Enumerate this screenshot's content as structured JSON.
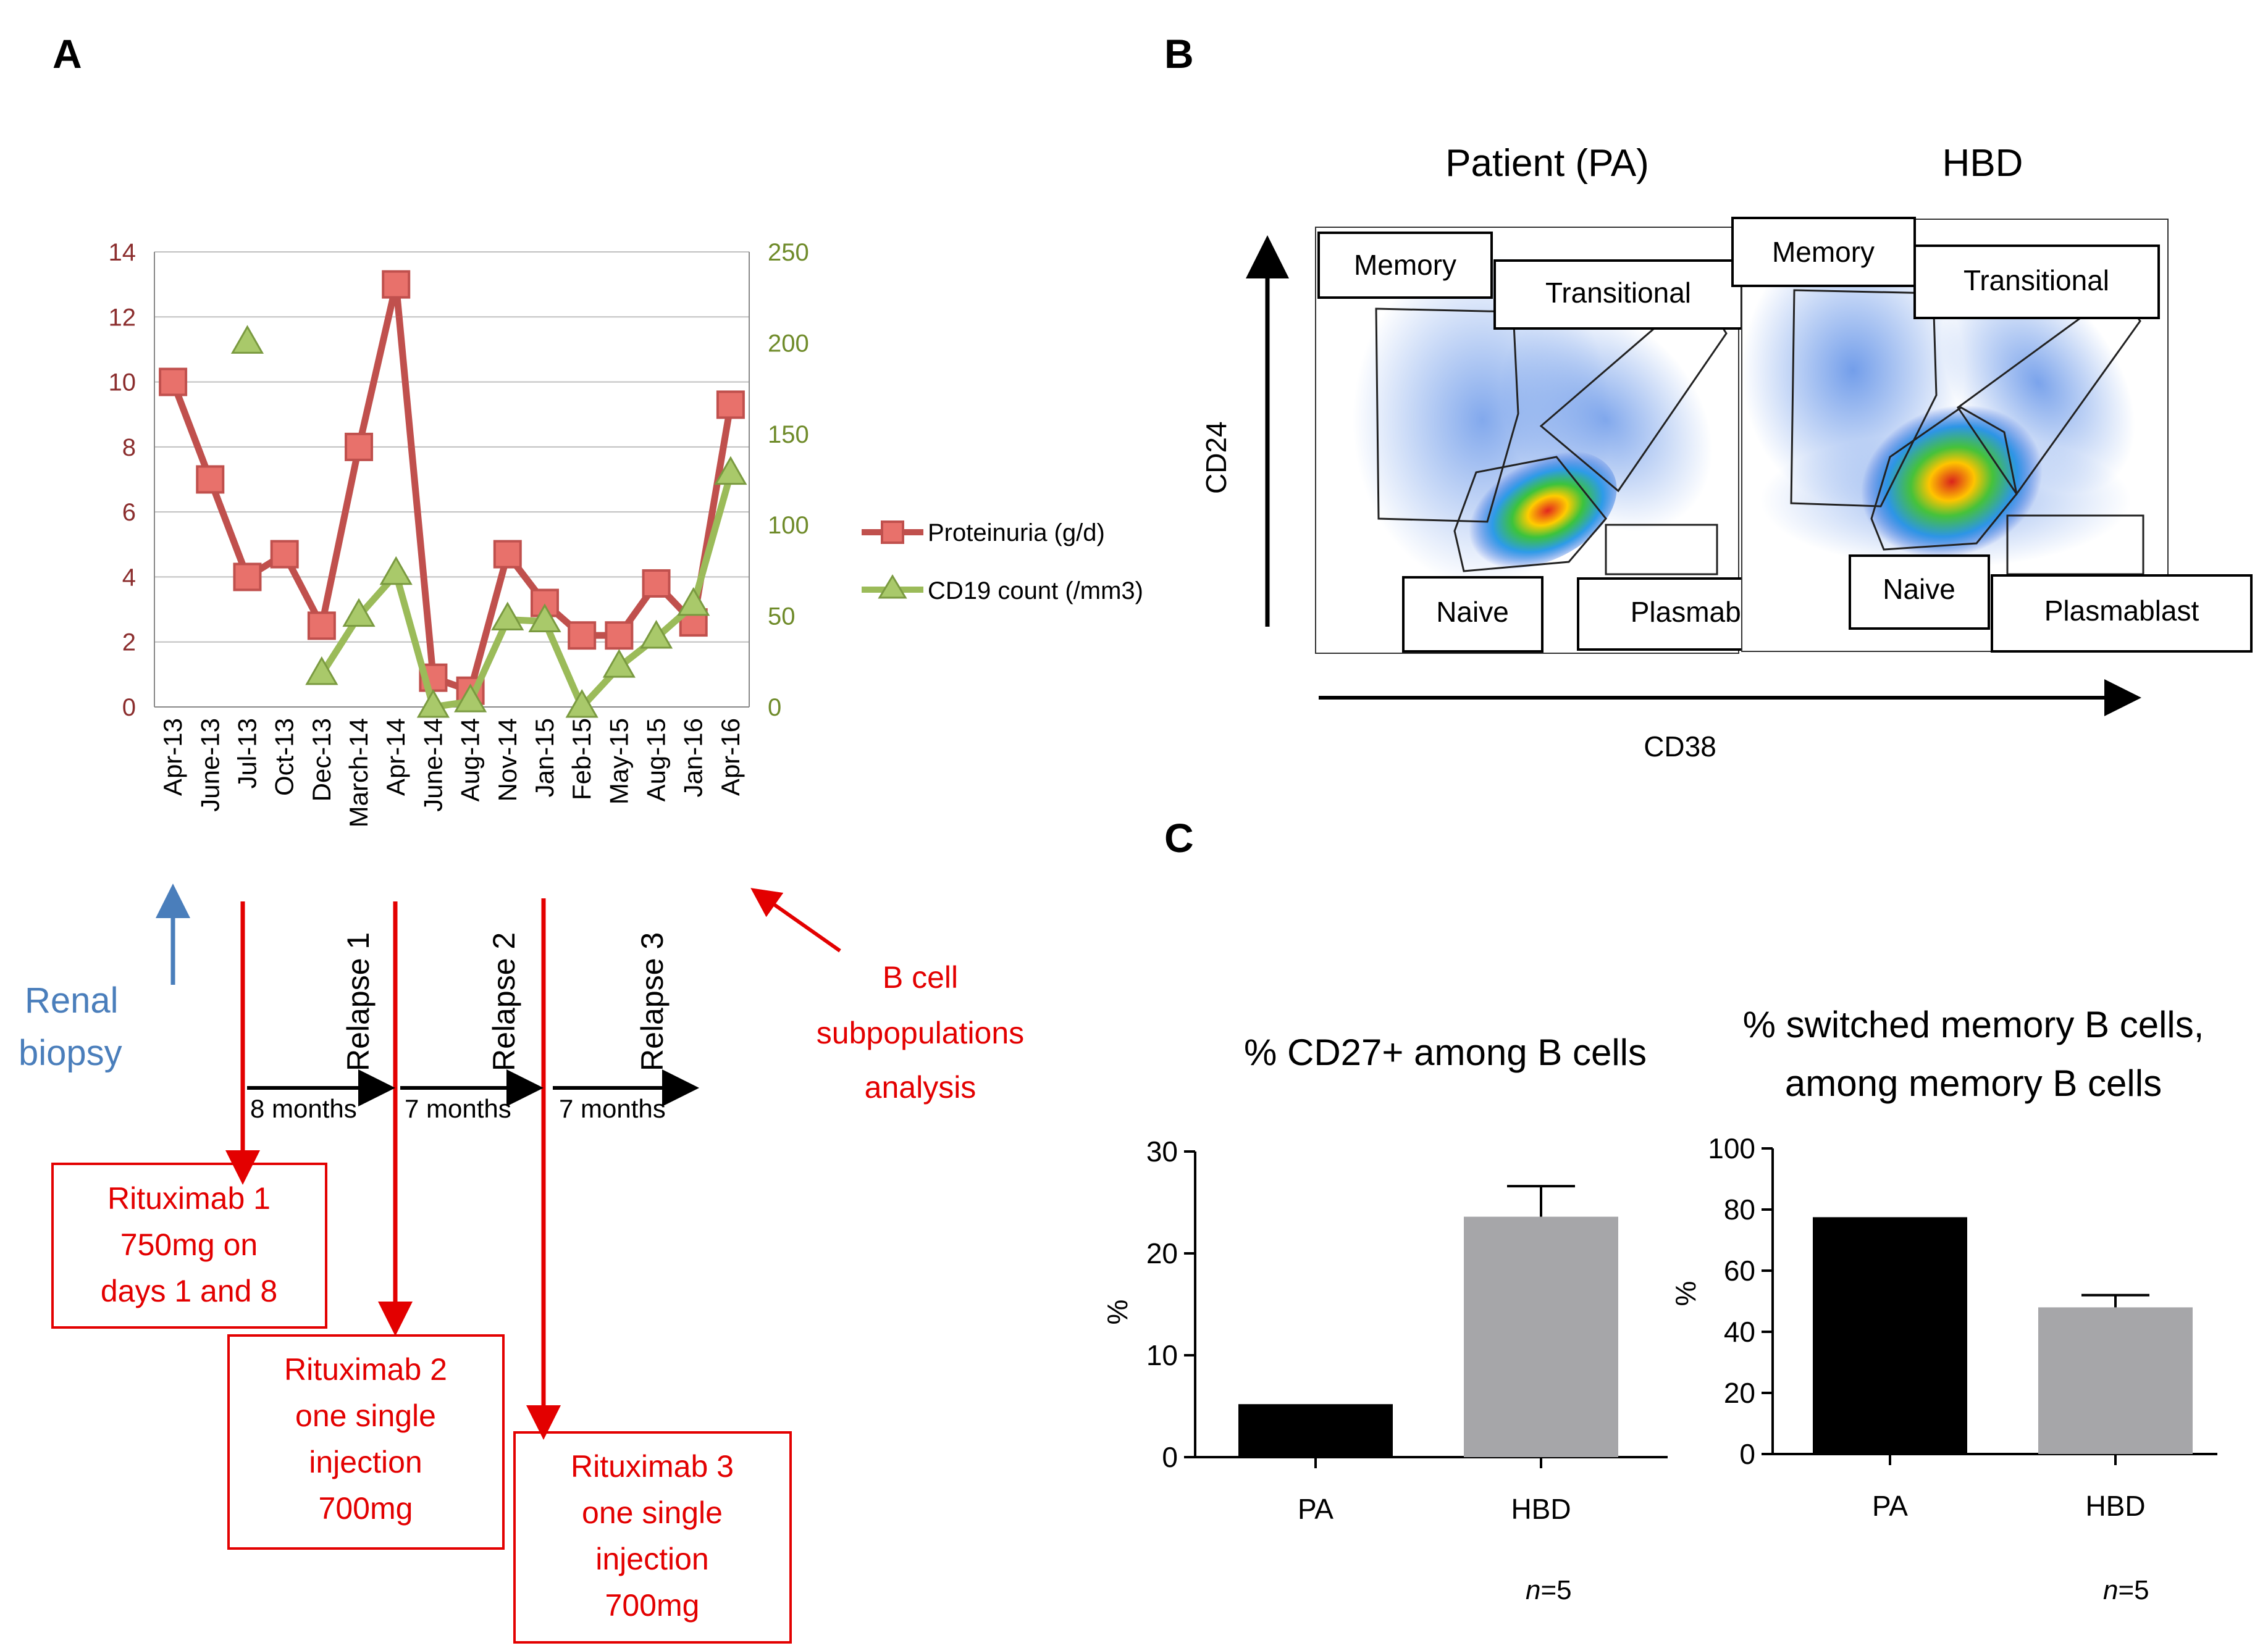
{
  "panels": {
    "A": "A",
    "B": "B",
    "C": "C"
  },
  "colors": {
    "proteinuria": "#c0504d",
    "proteinuria_marker": "#e8716b",
    "cd19": "#9bbb59",
    "left_axis": "#8b2d2d",
    "right_axis": "#6f8b2a",
    "annotation_red": "#e30000",
    "annotation_blue": "#4a7ebb",
    "bar_pa": "#000000",
    "bar_hbd": "#a6a6a9"
  },
  "chart_data": [
    {
      "type": "line",
      "panel": "A",
      "categories": [
        "Apr-13",
        "June-13",
        "Jul-13",
        "Oct-13",
        "Dec-13",
        "March-14",
        "Apr-14",
        "June-14",
        "Aug-14",
        "Nov-14",
        "Jan-15",
        "Feb-15",
        "May-15",
        "Aug-15",
        "Jan-16",
        "Apr-16"
      ],
      "y_left": {
        "range": [
          0,
          14
        ],
        "ticks": [
          "0",
          "2",
          "4",
          "6",
          "8",
          "10",
          "12",
          "14"
        ]
      },
      "y_right": {
        "range": [
          0,
          250
        ],
        "ticks": [
          "0",
          "50",
          "100",
          "150",
          "200",
          "250"
        ]
      },
      "grid": "horizontal",
      "series": [
        {
          "name": "Proteinuria (g/d)",
          "axis": "left",
          "marker": "square",
          "values": [
            10,
            7,
            4,
            4.7,
            2.5,
            8,
            13,
            0.9,
            0.5,
            4.7,
            3.2,
            2.2,
            2.2,
            3.8,
            2.6,
            9.3
          ]
        },
        {
          "name": "CD19 count (/mm3)",
          "axis": "right",
          "marker": "triangle",
          "values": [
            null,
            null,
            200,
            null,
            18,
            50,
            73,
            0,
            3,
            48,
            47,
            0,
            22,
            38,
            56,
            128
          ]
        }
      ]
    },
    {
      "type": "bar",
      "panel": "C",
      "title": "% CD27+ among B cells",
      "categories": [
        "PA",
        "HBD"
      ],
      "values": [
        5.2,
        23.6
      ],
      "error": [
        0,
        3
      ],
      "ylabel": "%",
      "ylim": [
        0,
        30
      ],
      "ticks": [
        "0",
        "10",
        "20",
        "30"
      ],
      "note_prefix": "n",
      "note_suffix": "=5"
    },
    {
      "type": "bar",
      "panel": "C",
      "title_line1": "% switched memory B cells,",
      "title_line2": "among memory B cells",
      "categories": [
        "PA",
        "HBD"
      ],
      "values": [
        77.5,
        48
      ],
      "error": [
        0,
        4
      ],
      "ylabel": "%",
      "ylim": [
        0,
        100
      ],
      "ticks": [
        "0",
        "20",
        "40",
        "60",
        "80",
        "100"
      ],
      "note_prefix": "n",
      "note_suffix": "=5"
    }
  ],
  "timeline": {
    "renal_biopsy_line1": "Renal",
    "renal_biopsy_line2": "biopsy",
    "bcell_line1": "B cell",
    "bcell_line2": "subpopulations",
    "bcell_line3": "analysis",
    "relapse1": "Relapse 1",
    "relapse2": "Relapse 2",
    "relapse3": "Relapse 3",
    "interval1": "8 months",
    "interval2": "7 months",
    "interval3": "7 months",
    "rtx1": [
      "Rituximab 1",
      "750mg on",
      "days 1 and 8"
    ],
    "rtx2": [
      "Rituximab 2",
      "one single",
      "injection",
      "700mg"
    ],
    "rtx3": [
      "Rituximab 3",
      "one single",
      "injection",
      "700mg"
    ]
  },
  "flow": {
    "title_patient": "Patient (PA)",
    "title_hbd": "HBD",
    "y_axis": "CD24",
    "x_axis": "CD38",
    "gates": {
      "memory": "Memory",
      "transitional": "Transitional",
      "naive": "Naive",
      "plasmablast": "Plasmablast"
    }
  }
}
